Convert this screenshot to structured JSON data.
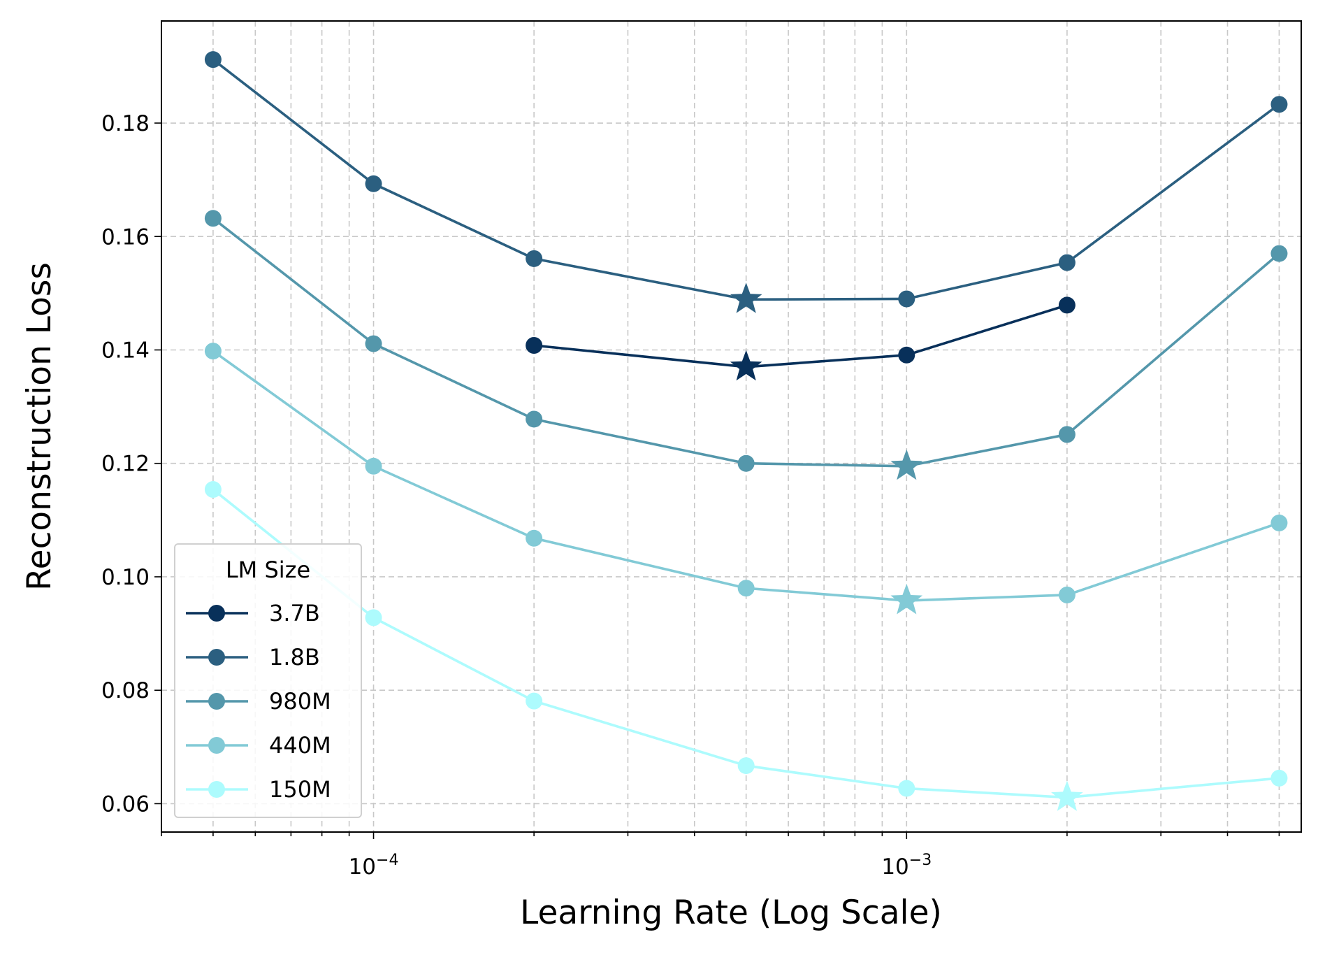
{
  "chart_data": {
    "type": "line",
    "title": "",
    "xlabel": "Learning Rate (Log Scale)",
    "ylabel": "Reconstruction Loss",
    "xscale": "log",
    "xlim": [
      4e-05,
      0.0055
    ],
    "ylim": [
      0.055,
      0.198
    ],
    "grid": true,
    "x_ticks": [
      {
        "value": 0.0001,
        "base": "10",
        "exp": "−4"
      },
      {
        "value": 0.001,
        "base": "10",
        "exp": "−3"
      }
    ],
    "y_ticks": [
      {
        "value": 0.06,
        "label": "0.06"
      },
      {
        "value": 0.08,
        "label": "0.08"
      },
      {
        "value": 0.1,
        "label": "0.10"
      },
      {
        "value": 0.12,
        "label": "0.12"
      },
      {
        "value": 0.14,
        "label": "0.14"
      },
      {
        "value": 0.16,
        "label": "0.16"
      },
      {
        "value": 0.18,
        "label": "0.18"
      }
    ],
    "legend_title": "LM Size",
    "legend_position": "lower-left",
    "star_meaning": "best learning rate per model",
    "series": [
      {
        "name": "3.7B",
        "color": "#08305a",
        "x": [
          0.0002,
          0.0005,
          0.001,
          0.002
        ],
        "y": [
          0.1408,
          0.137,
          0.1391,
          0.1479
        ],
        "best_index": 1
      },
      {
        "name": "1.8B",
        "color": "#2b5f80",
        "x": [
          5e-05,
          0.0001,
          0.0002,
          0.0005,
          0.001,
          0.002,
          0.005
        ],
        "y": [
          0.1912,
          0.1693,
          0.1561,
          0.1489,
          0.149,
          0.1554,
          0.1833
        ],
        "best_index": 3
      },
      {
        "name": "980M",
        "color": "#5497ab",
        "x": [
          5e-05,
          0.0001,
          0.0002,
          0.0005,
          0.001,
          0.002,
          0.005
        ],
        "y": [
          0.1632,
          0.1411,
          0.1278,
          0.12,
          0.1195,
          0.1251,
          0.157
        ],
        "best_index": 4
      },
      {
        "name": "440M",
        "color": "#82cad6",
        "x": [
          5e-05,
          0.0001,
          0.0002,
          0.0005,
          0.001,
          0.002,
          0.005
        ],
        "y": [
          0.1398,
          0.1195,
          0.1068,
          0.098,
          0.0958,
          0.0968,
          0.1095
        ],
        "best_index": 4
      },
      {
        "name": "150M",
        "color": "#adfbfd",
        "x": [
          5e-05,
          0.0001,
          0.0002,
          0.0005,
          0.001,
          0.002,
          0.005
        ],
        "y": [
          0.1154,
          0.0928,
          0.0781,
          0.0667,
          0.0627,
          0.0611,
          0.0645
        ],
        "best_index": 5
      }
    ]
  }
}
